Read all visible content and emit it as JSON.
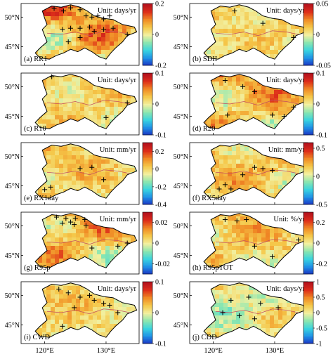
{
  "chart_data": {
    "type": "heatmap",
    "panels": [
      {
        "label": "(a) RR1",
        "unit": "Unit: days/yr",
        "colorbar_ticks": [
          "0.2",
          "0",
          "-0.2"
        ],
        "vmin": -0.2,
        "vmax": 0.2,
        "pattern": 0.9,
        "crosses": [
          [
            0.28,
            0.08
          ],
          [
            0.36,
            0.12
          ],
          [
            0.42,
            0.07
          ],
          [
            0.5,
            0.1
          ],
          [
            0.55,
            0.2
          ],
          [
            0.6,
            0.22
          ],
          [
            0.65,
            0.2
          ],
          [
            0.7,
            0.25
          ],
          [
            0.75,
            0.2
          ],
          [
            0.35,
            0.42
          ],
          [
            0.42,
            0.4
          ],
          [
            0.5,
            0.4
          ],
          [
            0.58,
            0.38
          ],
          [
            0.62,
            0.45
          ],
          [
            0.7,
            0.42
          ],
          [
            0.78,
            0.4
          ],
          [
            0.5,
            0.55
          ],
          [
            0.4,
            0.62
          ],
          [
            0.9,
            0.5
          ]
        ]
      },
      {
        "label": "(b) SDII",
        "unit": "Unit: days/yr",
        "colorbar_ticks": [
          "0.05",
          "0",
          "-0.05"
        ],
        "vmin": -0.05,
        "vmax": 0.05,
        "pattern": 0.2,
        "crosses": [
          [
            0.38,
            0.12
          ],
          [
            0.88,
            0.55
          ],
          [
            0.62,
            0.32
          ]
        ]
      },
      {
        "label": "(c) R10",
        "unit": "Unit: days/yr",
        "colorbar_ticks": [
          "0.1",
          "0",
          "-0.1"
        ],
        "vmin": -0.1,
        "vmax": 0.1,
        "pattern": 0.35,
        "crosses": [
          [
            0.26,
            0.06
          ],
          [
            0.9,
            0.48
          ],
          [
            0.72,
            0.72
          ]
        ]
      },
      {
        "label": "(d) R20",
        "unit": "Unit: days/yr",
        "colorbar_ticks": [
          "0.1",
          "0",
          "-0.1"
        ],
        "vmin": -0.1,
        "vmax": 0.1,
        "pattern": 0.7,
        "crosses": [
          [
            0.3,
            0.12
          ],
          [
            0.45,
            0.22
          ],
          [
            0.88,
            0.55
          ],
          [
            0.8,
            0.7
          ],
          [
            0.7,
            0.68
          ],
          [
            0.55,
            0.3
          ],
          [
            0.32,
            0.68
          ]
        ]
      },
      {
        "label": "(e) RX1day",
        "unit": "Unit: mm/yr",
        "colorbar_ticks": [
          "0.2",
          "0",
          "-0.2",
          "-0.4"
        ],
        "vmin": -0.4,
        "vmax": 0.3,
        "pattern": 0.4,
        "crosses": [
          [
            0.5,
            0.42
          ],
          [
            0.6,
            0.4
          ],
          [
            0.7,
            0.6
          ],
          [
            0.25,
            0.72
          ],
          [
            0.2,
            0.76
          ]
        ]
      },
      {
        "label": "(f) RX5day",
        "unit": "Unit: mm/yr",
        "colorbar_ticks": [
          "0.5",
          "0",
          "-0.5"
        ],
        "vmin": -0.5,
        "vmax": 0.6,
        "pattern": 0.55,
        "crosses": [
          [
            0.3,
            0.68
          ],
          [
            0.25,
            0.75
          ],
          [
            0.35,
            0.75
          ],
          [
            0.55,
            0.4
          ],
          [
            0.62,
            0.42
          ],
          [
            0.45,
            0.52
          ],
          [
            0.7,
            0.45
          ]
        ]
      },
      {
        "label": "(g) R95p",
        "unit": "Unit: mm/yr",
        "colorbar_ticks": [
          "0.02",
          "0",
          "-0.02"
        ],
        "vmin": -0.03,
        "vmax": 0.03,
        "pattern": 0.75,
        "crosses": [
          [
            0.3,
            0.08
          ],
          [
            0.38,
            0.1
          ],
          [
            0.46,
            0.1
          ],
          [
            0.54,
            0.12
          ],
          [
            0.35,
            0.18
          ],
          [
            0.45,
            0.2
          ],
          [
            0.55,
            0.22
          ],
          [
            0.42,
            0.16
          ],
          [
            0.6,
            0.58
          ],
          [
            0.82,
            0.55
          ],
          [
            0.9,
            0.5
          ]
        ]
      },
      {
        "label": "(h) R95pTOT",
        "unit": "Unit: %/yr",
        "colorbar_ticks": [
          "0.2",
          "0",
          "-0.2"
        ],
        "vmin": -0.3,
        "vmax": 0.3,
        "pattern": 0.45,
        "crosses": [
          [
            0.3,
            0.12
          ],
          [
            0.4,
            0.14
          ],
          [
            0.48,
            0.12
          ],
          [
            0.92,
            0.45
          ],
          [
            0.55,
            0.55
          ],
          [
            0.7,
            0.72
          ]
        ]
      },
      {
        "label": "(i) CWD",
        "unit": "Unit: days/yr",
        "colorbar_ticks": [
          "0.1",
          "0",
          "-0.1"
        ],
        "vmin": -0.1,
        "vmax": 0.1,
        "pattern": 0.3,
        "crosses": [
          [
            0.32,
            0.12
          ],
          [
            0.4,
            0.18
          ],
          [
            0.5,
            0.25
          ],
          [
            0.58,
            0.22
          ],
          [
            0.62,
            0.3
          ],
          [
            0.7,
            0.35
          ],
          [
            0.75,
            0.38
          ],
          [
            0.82,
            0.5
          ],
          [
            0.45,
            0.42
          ],
          [
            0.35,
            0.72
          ]
        ]
      },
      {
        "label": "(j) CDD",
        "unit": "Unit: days/yr",
        "colorbar_ticks": [
          "1",
          "0.5",
          "0",
          "-0.5",
          "-1"
        ],
        "vmin": -1,
        "vmax": 1,
        "pattern": -0.5,
        "crosses": [
          [
            0.35,
            0.3
          ],
          [
            0.5,
            0.25
          ],
          [
            0.6,
            0.35
          ],
          [
            0.75,
            0.42
          ],
          [
            0.42,
            0.55
          ],
          [
            0.28,
            0.5
          ],
          [
            0.55,
            0.6
          ]
        ]
      }
    ],
    "y_tick_labels": [
      "50°N",
      "45°N"
    ],
    "x_tick_labels": [
      "120°E",
      "130°E"
    ],
    "colorscale": [
      "#1a2dbf",
      "#1f8fe6",
      "#39d3e0",
      "#8ae6b0",
      "#f2f0a0",
      "#f5c84a",
      "#f08a25",
      "#dd2d1a",
      "#b4121e"
    ]
  }
}
